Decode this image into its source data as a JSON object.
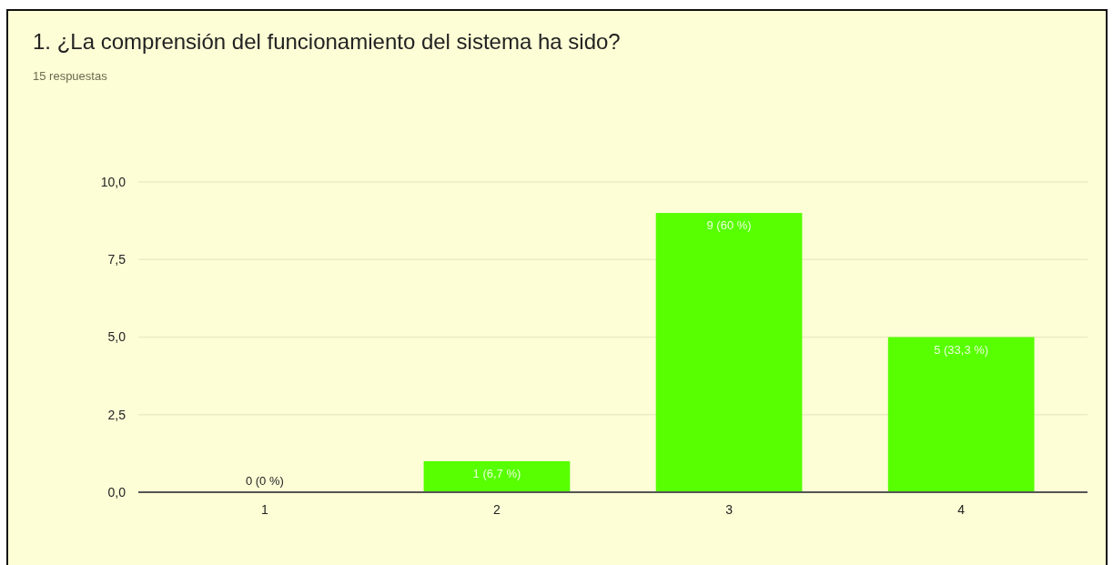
{
  "chart_data": {
    "type": "bar",
    "title": "1. ¿La comprensión del funcionamiento del sistema ha sido?",
    "subtitle": "15 respuestas",
    "categories": [
      "1",
      "2",
      "3",
      "4"
    ],
    "values": [
      0,
      1,
      9,
      5
    ],
    "color": "#57ff00",
    "value_labels": [
      "0 (0 %)",
      "1 (6,7 %)",
      "9 (60 %)",
      "5 (33,3 %)"
    ],
    "ylim": [
      0,
      10
    ],
    "yticks": [
      {
        "value": 0,
        "label": "0,0"
      },
      {
        "value": 2.5,
        "label": "2,5"
      },
      {
        "value": 5,
        "label": "5,0"
      },
      {
        "value": 7.5,
        "label": "7,5"
      },
      {
        "value": 10,
        "label": "10,0"
      }
    ],
    "grid": "y"
  }
}
